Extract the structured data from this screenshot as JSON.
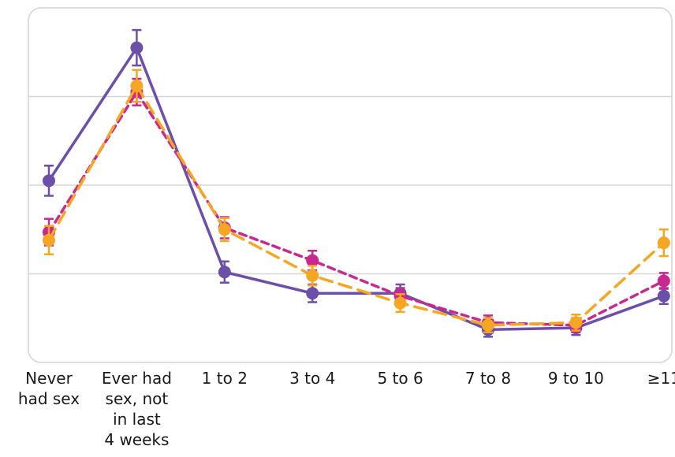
{
  "chart_data": {
    "type": "line",
    "title": "",
    "xlabel": "",
    "ylabel": "",
    "categories": [
      [
        "Never",
        "had sex"
      ],
      [
        "Ever had",
        "sex, not",
        "in last",
        "4 weeks"
      ],
      [
        "1 to 2"
      ],
      [
        "3 to 4"
      ],
      [
        "5 to 6"
      ],
      [
        "7 to 8"
      ],
      [
        "9 to 10"
      ],
      [
        "≥11"
      ]
    ],
    "ylim": [
      0,
      4
    ],
    "yticks": [
      1,
      2,
      3
    ],
    "ytick_labels_visible": false,
    "grid": "horizontal",
    "legend": "none",
    "series": [
      {
        "color": "#6b4fa8",
        "style": "solid",
        "values": [
          2.05,
          3.55,
          1.02,
          0.78,
          0.78,
          0.37,
          0.39,
          0.75
        ],
        "err": [
          0.17,
          0.2,
          0.12,
          0.1,
          0.1,
          0.08,
          0.08,
          0.09
        ]
      },
      {
        "color": "#c9288e",
        "style": "dashed",
        "values": [
          1.47,
          3.05,
          1.52,
          1.15,
          0.75,
          0.45,
          0.42,
          0.92
        ],
        "err": [
          0.15,
          0.15,
          0.12,
          0.11,
          0.09,
          0.08,
          0.08,
          0.09
        ]
      },
      {
        "color": "#f5a623",
        "style": "longdash",
        "values": [
          1.38,
          3.12,
          1.5,
          0.98,
          0.67,
          0.42,
          0.45,
          1.35
        ],
        "err": [
          0.16,
          0.18,
          0.13,
          0.11,
          0.1,
          0.08,
          0.09,
          0.15
        ]
      }
    ]
  }
}
